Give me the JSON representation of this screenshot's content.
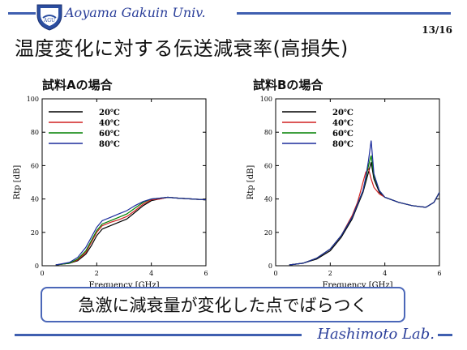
{
  "header": {
    "university": "Aoyama Gakuin Univ.",
    "page": "13/16"
  },
  "title": "温度変化に対する伝送減衰率(高損失)",
  "footer": {
    "lab": "Hashimoto Lab."
  },
  "callout": "急激に減衰量が変化した点でばらつく",
  "colors": {
    "accent": "#3f5fb0",
    "brand_text": "#2b3f9a",
    "20": "#000000",
    "40": "#d02020",
    "60": "#008000",
    "80": "#1c2c9c"
  },
  "chart_data": [
    {
      "type": "line",
      "title": "試料Aの場合",
      "xlabel": "Frequency [GHz]",
      "ylabel": "Rtp [dB]",
      "xlim": [
        0,
        6
      ],
      "ylim": [
        0,
        100
      ],
      "xticks": [
        "0",
        "2",
        "4",
        "6"
      ],
      "yticks": [
        "0",
        "20",
        "40",
        "60",
        "80",
        "100"
      ],
      "legend_position": "top-left",
      "series": [
        {
          "name": "20℃",
          "color": "#000000",
          "x": [
            0.5,
            1.0,
            1.3,
            1.6,
            1.8,
            2.0,
            2.2,
            2.5,
            2.8,
            3.1,
            3.4,
            3.7,
            4.0,
            4.3,
            4.6,
            5.0,
            5.5,
            6.0
          ],
          "values": [
            0.5,
            1.5,
            3,
            7,
            12,
            18,
            22,
            24,
            26,
            28,
            32,
            36,
            39,
            40,
            41,
            40.5,
            40,
            39.5
          ]
        },
        {
          "name": "40℃",
          "color": "#d02020",
          "x": [
            0.5,
            1.0,
            1.3,
            1.6,
            1.8,
            2.0,
            2.2,
            2.5,
            2.8,
            3.1,
            3.4,
            3.7,
            4.0,
            4.3,
            4.6,
            5.0,
            5.5,
            6.0
          ],
          "values": [
            0.5,
            1.5,
            3.5,
            8,
            14,
            20,
            24,
            26,
            27.5,
            29.5,
            33,
            37,
            39.5,
            40,
            41,
            40.5,
            40,
            39.5
          ]
        },
        {
          "name": "60℃",
          "color": "#008000",
          "x": [
            0.5,
            1.0,
            1.3,
            1.6,
            1.8,
            2.0,
            2.2,
            2.5,
            2.8,
            3.1,
            3.4,
            3.7,
            4.0,
            4.3,
            4.6,
            5.0,
            5.5,
            6.0
          ],
          "values": [
            0.5,
            1.5,
            4,
            9,
            15,
            21,
            25,
            27,
            29,
            31,
            34.5,
            38,
            40,
            40.5,
            41,
            40.5,
            40,
            39.5
          ]
        },
        {
          "name": "80℃",
          "color": "#1c2c9c",
          "x": [
            0.5,
            1.0,
            1.3,
            1.6,
            1.8,
            2.0,
            2.2,
            2.5,
            2.8,
            3.1,
            3.4,
            3.7,
            4.0,
            4.3,
            4.6,
            5.0,
            5.5,
            6.0
          ],
          "values": [
            0.5,
            2,
            5,
            11,
            17,
            23,
            27,
            29,
            31,
            33,
            36,
            38.5,
            40,
            40.5,
            41,
            40.5,
            40,
            39.5
          ]
        }
      ]
    },
    {
      "type": "line",
      "title": "試料Bの場合",
      "xlabel": "Frequency [GHz]",
      "ylabel": "Rtp [dB]",
      "xlim": [
        0,
        6
      ],
      "ylim": [
        0,
        100
      ],
      "xticks": [
        "0",
        "2",
        "4",
        "6"
      ],
      "yticks": [
        "0",
        "20",
        "40",
        "60",
        "80",
        "100"
      ],
      "legend_position": "top-left",
      "series": [
        {
          "name": "20℃",
          "color": "#000000",
          "x": [
            0.5,
            1.0,
            1.5,
            2.0,
            2.4,
            2.8,
            3.0,
            3.2,
            3.3,
            3.4,
            3.5,
            3.6,
            3.8,
            4.0,
            4.5,
            5.0,
            5.5,
            5.8,
            6.0
          ],
          "values": [
            0.5,
            1.5,
            4,
            9,
            17,
            28,
            36,
            44,
            50,
            56,
            62,
            52,
            44,
            41,
            38,
            36,
            35,
            38,
            44
          ]
        },
        {
          "name": "40℃",
          "color": "#d02020",
          "x": [
            0.5,
            1.0,
            1.5,
            2.0,
            2.4,
            2.8,
            3.0,
            3.1,
            3.2,
            3.3,
            3.4,
            3.5,
            3.6,
            3.8,
            4.0,
            4.5,
            5.0,
            5.5,
            5.8,
            6.0
          ],
          "values": [
            0.5,
            1.5,
            4.5,
            10,
            18,
            30,
            38,
            44,
            50,
            56,
            58,
            52,
            47,
            43,
            41,
            38,
            36,
            35,
            38,
            44
          ]
        },
        {
          "name": "60℃",
          "color": "#008000",
          "x": [
            0.5,
            1.0,
            1.5,
            2.0,
            2.4,
            2.8,
            3.0,
            3.2,
            3.3,
            3.4,
            3.5,
            3.6,
            3.8,
            4.0,
            4.5,
            5.0,
            5.5,
            5.8,
            6.0
          ],
          "values": [
            0.5,
            1.5,
            4.5,
            10,
            18,
            29,
            37,
            45,
            52,
            60,
            66,
            54,
            45,
            41,
            38,
            36,
            35,
            38,
            44
          ]
        },
        {
          "name": "80℃",
          "color": "#1c2c9c",
          "x": [
            0.5,
            1.0,
            1.5,
            2.0,
            2.4,
            2.8,
            3.0,
            3.2,
            3.3,
            3.4,
            3.5,
            3.6,
            3.8,
            4.0,
            4.5,
            5.0,
            5.5,
            5.8,
            6.0
          ],
          "values": [
            0.5,
            1.5,
            4.5,
            10,
            18,
            29,
            37,
            45,
            53,
            63,
            75,
            55,
            45,
            41,
            38,
            36,
            35,
            38,
            44
          ]
        }
      ]
    }
  ]
}
